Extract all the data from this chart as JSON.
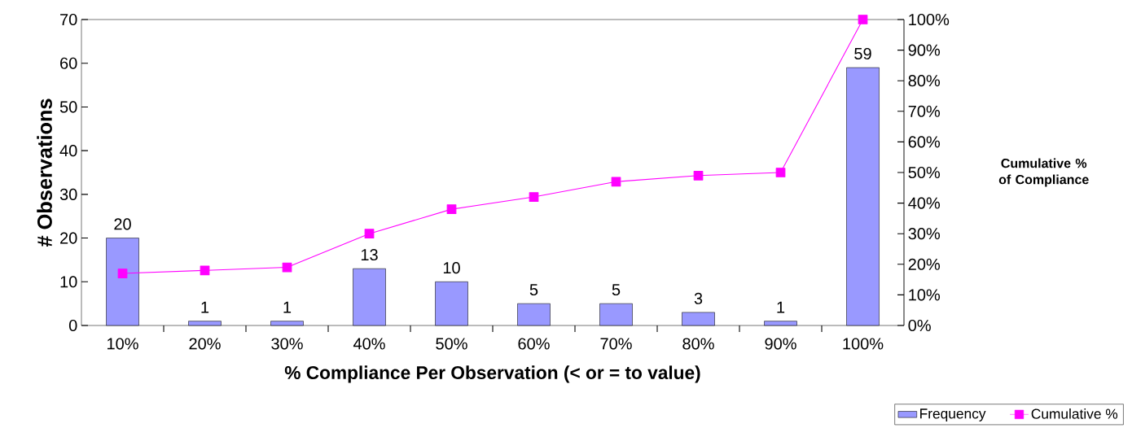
{
  "chart_data": {
    "type": "bar",
    "xlabel": "% Compliance Per Observation (< or = to value)",
    "ylabel": "# Observations",
    "y2label": "Cumulative % of Compliance",
    "categories": [
      "10%",
      "20%",
      "30%",
      "40%",
      "50%",
      "60%",
      "70%",
      "80%",
      "90%",
      "100%"
    ],
    "series": [
      {
        "name": "Frequency",
        "color": "#9999ff",
        "values": [
          20,
          1,
          1,
          13,
          10,
          5,
          5,
          3,
          1,
          59
        ],
        "value_labels": [
          "20",
          "1",
          "1",
          "13",
          "10",
          "5",
          "5",
          "3",
          "1",
          "59"
        ]
      },
      {
        "name": "Cumulative %",
        "type": "line",
        "axis": "y2",
        "color": "#ff00ff",
        "marker": "square",
        "line_style": "solid",
        "values": [
          17,
          18,
          19,
          30,
          38,
          42,
          47,
          49,
          50,
          100
        ]
      }
    ],
    "ylim": [
      0,
      70
    ],
    "yticks": [
      0,
      10,
      20,
      30,
      40,
      50,
      60,
      70
    ],
    "y2lim": [
      0,
      100
    ],
    "y2ticks": [
      {
        "value": 0,
        "label": "0%"
      },
      {
        "value": 10,
        "label": "10%"
      },
      {
        "value": 20,
        "label": "20%"
      },
      {
        "value": 30,
        "label": "30%"
      },
      {
        "value": 40,
        "label": "40%"
      },
      {
        "value": 50,
        "label": "50%"
      },
      {
        "value": 60,
        "label": "60%"
      },
      {
        "value": 70,
        "label": "70%"
      },
      {
        "value": 80,
        "label": "80%"
      },
      {
        "value": 90,
        "label": "90%"
      },
      {
        "value": 100,
        "label": "100%"
      }
    ],
    "legend": "bottom right"
  }
}
